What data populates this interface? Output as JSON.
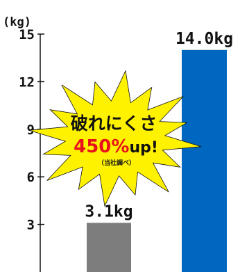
{
  "chart_data": {
    "type": "bar",
    "ylabel": "(kg)",
    "ylim": [
      0,
      15
    ],
    "yticks": [
      3,
      6,
      9,
      12,
      15
    ],
    "grid": false,
    "series": [
      {
        "values": [
          3.1,
          14.0
        ],
        "data_labels": [
          "3.1kg",
          "14.0kg"
        ],
        "colors": [
          "#7d7d7d",
          "#0067c0"
        ]
      }
    ]
  },
  "callout": {
    "line1": "破れにくさ",
    "percent": "450%",
    "up": "up!",
    "note": "（当社調べ）",
    "fill": "#fff200"
  },
  "colors": {
    "axis": "#111111",
    "burst": "#fff200",
    "accent_red": "#e8121b"
  }
}
